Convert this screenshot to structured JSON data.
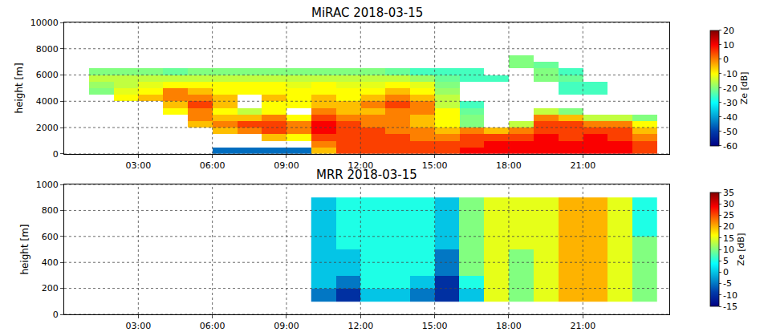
{
  "chart_data": [
    {
      "type": "heatmap",
      "title": "MiRAC 2018-03-15",
      "y_label": "height [m]",
      "grid": true,
      "x": [
        0.5,
        1.5,
        2.5,
        3.5,
        4.5,
        5.5,
        6.5,
        7.5,
        8.5,
        9.5,
        10.5,
        11.5,
        12.5,
        13.5,
        14.5,
        15.5,
        16.5,
        17.5,
        18.5,
        19.5,
        20.5,
        21.5,
        22.5,
        23.5
      ],
      "y": [
        250,
        750,
        1250,
        1750,
        2250,
        2750,
        3250,
        3750,
        4250,
        4750,
        5250,
        5750,
        6250,
        6750,
        7250
      ],
      "cells": [
        [
          null,
          null,
          null,
          null,
          null,
          null,
          null,
          null,
          null,
          null,
          null,
          null,
          null,
          null,
          null
        ],
        [
          null,
          null,
          null,
          null,
          null,
          null,
          null,
          null,
          null,
          -20,
          -18,
          -15,
          -20,
          null,
          null
        ],
        [
          null,
          null,
          null,
          null,
          null,
          null,
          null,
          null,
          -10,
          -12,
          -15,
          -15,
          -20,
          null,
          null
        ],
        [
          null,
          null,
          null,
          null,
          null,
          null,
          null,
          null,
          -5,
          -10,
          -12,
          -15,
          -20,
          null,
          null
        ],
        [
          null,
          null,
          null,
          null,
          null,
          null,
          -10,
          -5,
          0,
          0,
          -10,
          -15,
          -22,
          null,
          null
        ],
        [
          null,
          null,
          null,
          null,
          -5,
          0,
          0,
          5,
          0,
          -5,
          -10,
          -15,
          -20,
          null,
          null
        ],
        [
          -45,
          null,
          null,
          -5,
          0,
          -5,
          -10,
          -5,
          -5,
          -10,
          -10,
          -15,
          -20,
          null,
          null
        ],
        [
          -45,
          null,
          null,
          0,
          5,
          -5,
          -15,
          null,
          null,
          -10,
          -10,
          -15,
          -20,
          null,
          null
        ],
        [
          -45,
          null,
          -5,
          5,
          5,
          0,
          -10,
          -10,
          -5,
          -10,
          -10,
          -15,
          -20,
          null,
          null
        ],
        [
          -45,
          null,
          -10,
          0,
          0,
          -10,
          null,
          -10,
          -10,
          -10,
          -12,
          -15,
          -20,
          null,
          null
        ],
        [
          -5,
          0,
          5,
          10,
          10,
          5,
          0,
          -5,
          -5,
          -10,
          -10,
          -15,
          -20,
          null,
          null
        ],
        [
          5,
          5,
          5,
          5,
          5,
          0,
          -5,
          -5,
          -10,
          -10,
          -12,
          -15,
          -20,
          null,
          null
        ],
        [
          5,
          5,
          5,
          5,
          0,
          0,
          -5,
          0,
          -5,
          -10,
          -12,
          -15,
          -20,
          null,
          null
        ],
        [
          5,
          5,
          5,
          0,
          0,
          0,
          0,
          5,
          0,
          -5,
          -10,
          -15,
          -22,
          null,
          null
        ],
        [
          5,
          5,
          0,
          0,
          -5,
          -5,
          0,
          0,
          -5,
          -10,
          -12,
          -18,
          -25,
          null,
          null
        ],
        [
          5,
          5,
          0,
          -5,
          -10,
          -10,
          -10,
          -15,
          -15,
          -18,
          -20,
          -22,
          -25,
          null,
          null
        ],
        [
          10,
          5,
          5,
          0,
          -20,
          -20,
          -22,
          -25,
          null,
          null,
          null,
          -25,
          -25,
          null,
          null
        ],
        [
          10,
          10,
          5,
          -5,
          null,
          null,
          null,
          null,
          null,
          null,
          null,
          -25,
          null,
          null,
          null
        ],
        [
          10,
          10,
          5,
          0,
          -15,
          null,
          null,
          null,
          null,
          null,
          null,
          null,
          null,
          -20,
          -20
        ],
        [
          10,
          10,
          10,
          5,
          5,
          0,
          -15,
          null,
          null,
          null,
          null,
          -20,
          -20,
          -22,
          null
        ],
        [
          10,
          10,
          5,
          5,
          5,
          -5,
          -20,
          null,
          null,
          -25,
          -25,
          -22,
          -25,
          null,
          null
        ],
        [
          10,
          10,
          10,
          5,
          0,
          -15,
          null,
          null,
          null,
          -25,
          -25,
          null,
          null,
          null,
          null
        ],
        [
          10,
          10,
          5,
          5,
          0,
          -15,
          null,
          null,
          null,
          null,
          null,
          null,
          null,
          null,
          null
        ],
        [
          5,
          5,
          0,
          -5,
          -10,
          -20,
          null,
          null,
          null,
          null,
          null,
          null,
          null,
          null,
          null
        ]
      ],
      "xlim": [
        0,
        24.5
      ],
      "xticks": [
        {
          "value": 3,
          "label": "03:00"
        },
        {
          "value": 6,
          "label": "06:00"
        },
        {
          "value": 9,
          "label": "09:00"
        },
        {
          "value": 12,
          "label": "12:00"
        },
        {
          "value": 15,
          "label": "15:00"
        },
        {
          "value": 18,
          "label": "18:00"
        },
        {
          "value": 21,
          "label": "21:00"
        }
      ],
      "ylim": [
        0,
        10000
      ],
      "yticks": [
        0,
        2000,
        4000,
        6000,
        8000,
        10000
      ],
      "colorbar": {
        "title": "Ze [dB]",
        "range": [
          -60,
          20
        ],
        "ticks": [
          -60,
          -50,
          -40,
          -30,
          -20,
          -10,
          0,
          10,
          20
        ]
      }
    },
    {
      "type": "heatmap",
      "title": "MRR 2018-03-15",
      "y_label": "height [m]",
      "grid": true,
      "x": [
        10.5,
        11.5,
        12.5,
        13.5,
        14.5,
        15.5,
        16.5,
        17.5,
        18.5,
        19.5,
        20.5,
        21.5,
        22.5,
        23.5
      ],
      "y": [
        150,
        250,
        350,
        450,
        550,
        650,
        750,
        850
      ],
      "cells": [
        [
          -5,
          0,
          0,
          0,
          0,
          0,
          0,
          0
        ],
        [
          -10,
          -5,
          0,
          0,
          5,
          5,
          5,
          5
        ],
        [
          0,
          5,
          5,
          5,
          5,
          5,
          5,
          5
        ],
        [
          0,
          5,
          5,
          5,
          5,
          5,
          5,
          5
        ],
        [
          -5,
          0,
          5,
          5,
          5,
          5,
          5,
          5
        ],
        [
          -10,
          -10,
          -5,
          -5,
          0,
          0,
          0,
          0
        ],
        [
          0,
          5,
          10,
          10,
          10,
          10,
          10,
          10
        ],
        [
          15,
          15,
          15,
          15,
          15,
          15,
          15,
          15
        ],
        [
          10,
          10,
          10,
          10,
          15,
          15,
          15,
          15
        ],
        [
          15,
          15,
          15,
          15,
          15,
          15,
          15,
          15
        ],
        [
          20,
          20,
          20,
          20,
          20,
          20,
          20,
          20
        ],
        [
          20,
          20,
          20,
          20,
          20,
          20,
          20,
          20
        ],
        [
          15,
          15,
          15,
          15,
          15,
          15,
          15,
          15
        ],
        [
          10,
          10,
          10,
          10,
          10,
          5,
          5,
          5
        ]
      ],
      "xlim": [
        0,
        24.5
      ],
      "xticks": [
        {
          "value": 3,
          "label": "03:00"
        },
        {
          "value": 6,
          "label": "06:00"
        },
        {
          "value": 9,
          "label": "09:00"
        },
        {
          "value": 12,
          "label": "12:00"
        },
        {
          "value": 15,
          "label": "15:00"
        },
        {
          "value": 18,
          "label": "18:00"
        },
        {
          "value": 21,
          "label": "21:00"
        }
      ],
      "ylim": [
        0,
        1000
      ],
      "yticks": [
        0,
        200,
        400,
        600,
        800,
        1000
      ],
      "colorbar": {
        "title": "Ze [dB]",
        "range": [
          -15,
          35
        ],
        "ticks": [
          -15,
          -10,
          -5,
          0,
          5,
          10,
          15,
          20,
          25,
          30,
          35
        ]
      }
    }
  ]
}
